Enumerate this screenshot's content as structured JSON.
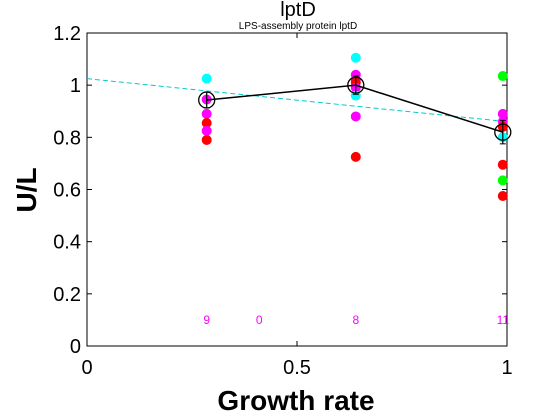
{
  "chart_data": {
    "type": "scatter",
    "title": "lptD",
    "subtitle": "LPS-assembly protein lptD",
    "xlabel": "Growth rate",
    "ylabel": "U/L",
    "xlim": [
      0,
      1.0
    ],
    "ylim": [
      0,
      1.2
    ],
    "xticks": [
      0,
      0.5,
      1
    ],
    "xtick_labels": [
      "0",
      "0.5",
      "1"
    ],
    "yticks": [
      0,
      0.2,
      0.4,
      0.6,
      0.8,
      1.0,
      1.2
    ],
    "ytick_labels": [
      "0",
      "0.2",
      "0.4",
      "0.6",
      "0.8",
      "1",
      "1.2"
    ],
    "grid": false,
    "replicate_points": [
      {
        "x": 0.285,
        "y": 1.025,
        "color": "#00ffff"
      },
      {
        "x": 0.285,
        "y": 0.945,
        "color": "#ff00ff"
      },
      {
        "x": 0.285,
        "y": 0.89,
        "color": "#ff00ff"
      },
      {
        "x": 0.285,
        "y": 0.855,
        "color": "#ff0000"
      },
      {
        "x": 0.285,
        "y": 0.825,
        "color": "#ff00ff"
      },
      {
        "x": 0.285,
        "y": 0.79,
        "color": "#ff0000"
      },
      {
        "x": 0.64,
        "y": 1.105,
        "color": "#00ffff"
      },
      {
        "x": 0.64,
        "y": 1.04,
        "color": "#ff00ff"
      },
      {
        "x": 0.64,
        "y": 1.02,
        "color": "#ff00ff"
      },
      {
        "x": 0.64,
        "y": 1.01,
        "color": "#ff0000"
      },
      {
        "x": 0.64,
        "y": 0.99,
        "color": "#ff00ff"
      },
      {
        "x": 0.64,
        "y": 0.96,
        "color": "#00ffff"
      },
      {
        "x": 0.64,
        "y": 0.88,
        "color": "#ff00ff"
      },
      {
        "x": 0.64,
        "y": 0.725,
        "color": "#ff0000"
      },
      {
        "x": 0.99,
        "y": 1.035,
        "color": "#00ff00"
      },
      {
        "x": 0.99,
        "y": 0.89,
        "color": "#ff00ff"
      },
      {
        "x": 0.99,
        "y": 0.86,
        "color": "#ff00ff"
      },
      {
        "x": 0.99,
        "y": 0.84,
        "color": "#ff0000"
      },
      {
        "x": 0.99,
        "y": 0.8,
        "color": "#00ffff"
      },
      {
        "x": 0.99,
        "y": 0.695,
        "color": "#ff0000"
      },
      {
        "x": 0.99,
        "y": 0.635,
        "color": "#00ff00"
      },
      {
        "x": 0.99,
        "y": 0.575,
        "color": "#ff0000"
      }
    ],
    "mean_series": {
      "x": [
        0.285,
        0.64,
        0.99
      ],
      "y": [
        0.943,
        1.0,
        0.82
      ],
      "err": [
        0.03,
        0.035,
        0.045
      ],
      "color": "#000000"
    },
    "fit_line": {
      "x": [
        0,
        1.0
      ],
      "y": [
        1.025,
        0.86
      ],
      "color": "#00cccc",
      "style": "dashed"
    },
    "counts": [
      {
        "x": 0.285,
        "label": "9"
      },
      {
        "x": 0.41,
        "label": "0"
      },
      {
        "x": 0.64,
        "label": "8"
      },
      {
        "x": 0.99,
        "label": "11"
      }
    ],
    "count_color": "#ff00ff",
    "count_y": 0.1
  }
}
